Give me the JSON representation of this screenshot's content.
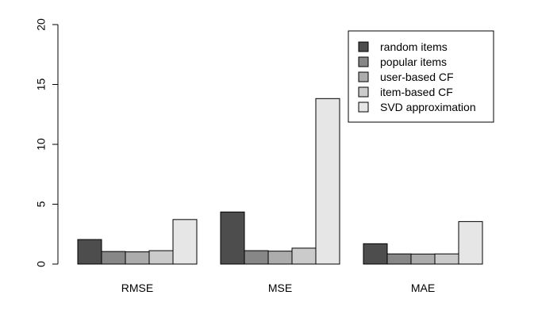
{
  "chart_data": {
    "type": "bar",
    "title": "",
    "xlabel": "",
    "ylabel": "",
    "ylim": [
      0,
      20
    ],
    "yticks": [
      0,
      5,
      10,
      15,
      20
    ],
    "categories": [
      "RMSE",
      "MSE",
      "MAE"
    ],
    "series": [
      {
        "name": "random items",
        "color": "#4d4d4d",
        "values": [
          2.05,
          4.35,
          1.7
        ]
      },
      {
        "name": "popular items",
        "color": "#878787",
        "values": [
          1.05,
          1.12,
          0.85
        ]
      },
      {
        "name": "user-based CF",
        "color": "#acacac",
        "values": [
          1.02,
          1.08,
          0.84
        ]
      },
      {
        "name": "item-based CF",
        "color": "#cbcbcb",
        "values": [
          1.12,
          1.33,
          0.85
        ]
      },
      {
        "name": "SVD approximation",
        "color": "#e6e6e6",
        "values": [
          3.72,
          13.82,
          3.55
        ]
      }
    ],
    "legend": "top-right",
    "grid": false
  }
}
